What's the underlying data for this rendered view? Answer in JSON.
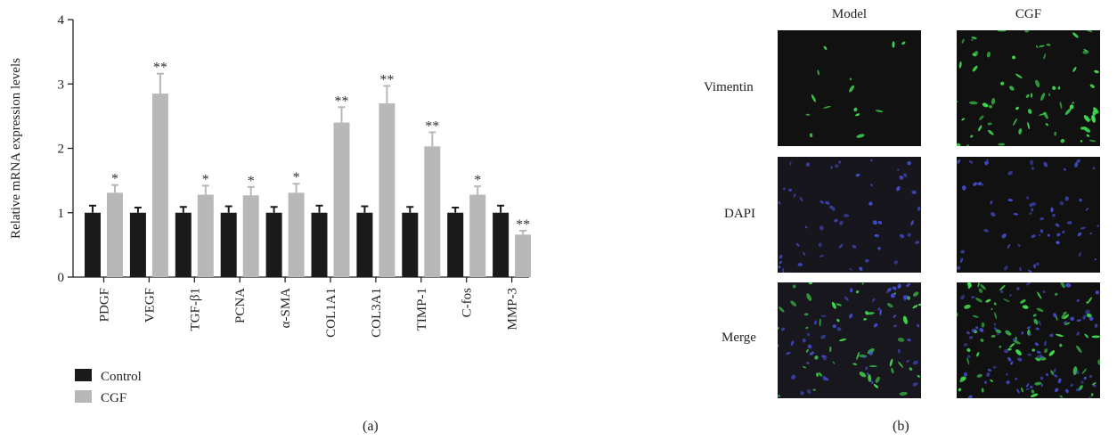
{
  "chart_data": {
    "type": "bar",
    "ylabel": "Relative mRNA expression levels",
    "ylim": [
      0,
      4
    ],
    "yticks": [
      0,
      1,
      2,
      3,
      4
    ],
    "categories": [
      "PDGF",
      "VEGF",
      "TGF-β1",
      "PCNA",
      "α-SMA",
      "COL1A1",
      "COL3A1",
      "TIMP-1",
      "C-fos",
      "MMP-3"
    ],
    "series": [
      {
        "name": "Control",
        "color": "#1a1a1a",
        "values": [
          1.0,
          1.0,
          1.0,
          1.0,
          1.0,
          1.0,
          1.0,
          1.0,
          1.0,
          1.0
        ],
        "errors": [
          0.11,
          0.08,
          0.09,
          0.1,
          0.09,
          0.11,
          0.1,
          0.09,
          0.08,
          0.11
        ]
      },
      {
        "name": "CGF",
        "color": "#b8b8b8",
        "values": [
          1.31,
          2.85,
          1.28,
          1.27,
          1.31,
          2.4,
          2.7,
          2.03,
          1.28,
          0.66
        ],
        "errors": [
          0.12,
          0.31,
          0.14,
          0.13,
          0.14,
          0.24,
          0.27,
          0.22,
          0.13,
          0.06
        ],
        "significance": [
          "*",
          "**",
          "*",
          "*",
          "*",
          "**",
          "**",
          "**",
          "*",
          "**"
        ]
      }
    ],
    "legend_position": "bottom-left",
    "grid": false
  },
  "panel_a_label": "(a)",
  "panel_b_label": "(b)",
  "microscopy": {
    "columns": [
      "Model",
      "CGF"
    ],
    "rows": [
      "Vimentin",
      "DAPI",
      "Merge"
    ]
  }
}
